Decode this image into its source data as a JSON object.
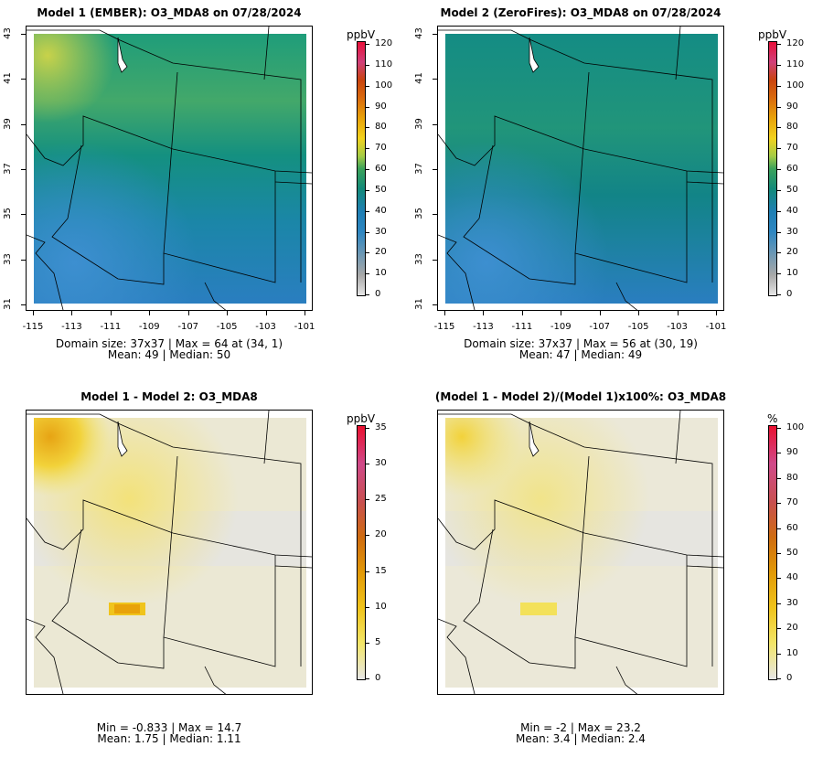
{
  "panels": [
    {
      "title": "Model 1 (EMBER): O3_MDA8 on 07/28/2024",
      "unit": "ppbV",
      "scale": "ozone",
      "cb_ticks": [
        "0",
        "10",
        "20",
        "30",
        "40",
        "50",
        "60",
        "70",
        "80",
        "90",
        "100",
        "110",
        "120"
      ],
      "x_ticks": [
        "-115",
        "-113",
        "-111",
        "-109",
        "-107",
        "-105",
        "-103",
        "-101"
      ],
      "y_ticks": [
        "31",
        "33",
        "35",
        "37",
        "39",
        "41",
        "43"
      ],
      "stat_line1": "Domain size: 37x37 | Max = 64 at (34, 1)",
      "stat_line2": "Mean: 49 |  Median: 50"
    },
    {
      "title": "Model 2 (ZeroFires): O3_MDA8 on 07/28/2024",
      "unit": "ppbV",
      "scale": "ozone",
      "cb_ticks": [
        "0",
        "10",
        "20",
        "30",
        "40",
        "50",
        "60",
        "70",
        "80",
        "90",
        "100",
        "110",
        "120"
      ],
      "x_ticks": [
        "-115",
        "-113",
        "-111",
        "-109",
        "-107",
        "-105",
        "-103",
        "-101"
      ],
      "y_ticks": [
        "31",
        "33",
        "35",
        "37",
        "39",
        "41",
        "43"
      ],
      "stat_line1": "Domain size: 37x37 | Max = 56 at (30, 19)",
      "stat_line2": "Mean: 47 |  Median: 49"
    },
    {
      "title": "Model 1 - Model 2: O3_MDA8",
      "unit": "ppbV",
      "scale": "diff",
      "cb_ticks": [
        "0",
        "5",
        "10",
        "15",
        "20",
        "25",
        "30",
        "35"
      ],
      "x_ticks": [],
      "y_ticks": [],
      "stat_line1": "Min = -0.833 | Max = 14.7",
      "stat_line2": "Mean: 1.75 |  Median: 1.11"
    },
    {
      "title": "(Model 1 - Model 2)/(Model 1)x100%: O3_MDA8",
      "unit": "%",
      "scale": "diff",
      "cb_ticks": [
        "0",
        "10",
        "20",
        "30",
        "40",
        "50",
        "60",
        "70",
        "80",
        "90",
        "100"
      ],
      "x_ticks": [],
      "y_ticks": [],
      "stat_line1": "Min = -2 | Max = 23.2",
      "stat_line2": "Mean: 3.4 |  Median: 2.4"
    }
  ],
  "colors": {
    "ozone_scale": [
      "#e6e6e6",
      "#a8a8a8",
      "#2e86c1",
      "#1f7fb4",
      "#138a7a",
      "#3ba25a",
      "#a6cc45",
      "#f2d21d",
      "#e8a20a",
      "#d96a0e",
      "#c9440f",
      "#d0407a",
      "#e8103a"
    ],
    "diff_scale": [
      "#e6e6e6",
      "#f3e66a",
      "#f0c41c",
      "#e29a08",
      "#cf6c10",
      "#c85050",
      "#d04a8a",
      "#ea1030"
    ]
  }
}
